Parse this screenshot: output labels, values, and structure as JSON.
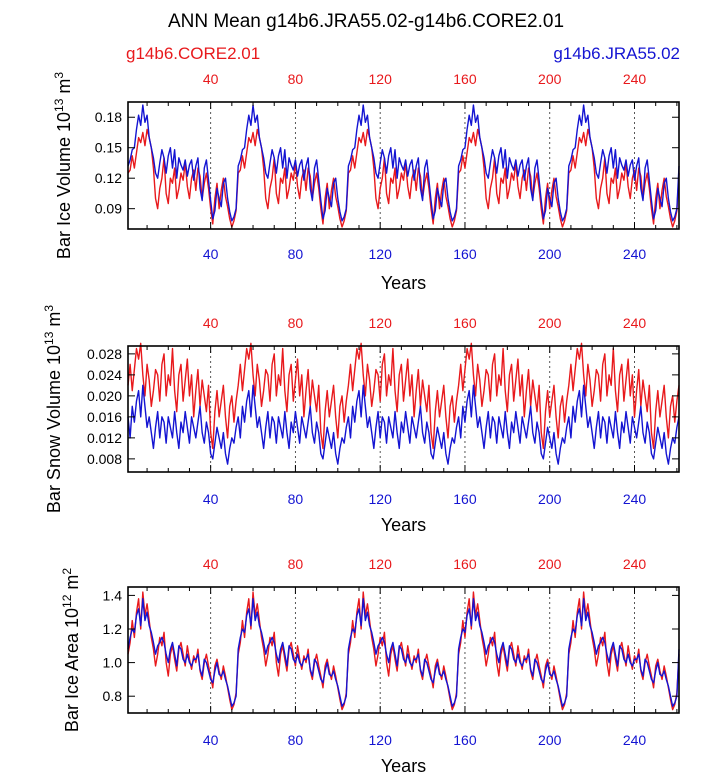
{
  "figure": {
    "title": "ANN Mean g14b6.JRA55.02-g14b6.CORE2.01",
    "legend_left": "g14b6.CORE2.01",
    "legend_right": "g14b6.JRA55.02",
    "colors": {
      "core": "#e8191c",
      "jra": "#1414d2",
      "axis": "#000000"
    }
  },
  "chart_data": [
    {
      "type": "line",
      "ylabel": "Bar Ice Volume 10^13 m^3",
      "ylabel_base": "Bar Ice Volume 10",
      "ylabel_exp": "13",
      "ylabel_unit": " m",
      "ylabel_unit_exp": "3",
      "xlabel": "Years",
      "xlim": [
        1,
        261
      ],
      "ylim": [
        0.07,
        0.195
      ],
      "yticks": [
        0.09,
        0.12,
        0.15,
        0.18
      ],
      "ytick_labels": [
        "0.09",
        "0.12",
        "0.15",
        "0.18"
      ],
      "xticks": [
        40,
        80,
        120,
        160,
        200,
        240
      ],
      "xtick_labels_top": [
        "40",
        "80",
        "120",
        "160",
        "200",
        "240"
      ],
      "xtick_labels_bottom": [
        "40",
        "80",
        "120",
        "160",
        "200",
        "240"
      ],
      "cycle_length": 52,
      "series": [
        {
          "name": "g14b6.CORE2.01",
          "color": "#e8191c",
          "values": [
            0.125,
            0.128,
            0.142,
            0.13,
            0.145,
            0.16,
            0.155,
            0.165,
            0.152,
            0.168,
            0.16,
            0.15,
            0.13,
            0.1,
            0.09,
            0.11,
            0.12,
            0.14,
            0.105,
            0.095,
            0.12,
            0.115,
            0.13,
            0.1,
            0.11,
            0.125,
            0.118,
            0.135,
            0.112,
            0.1,
            0.12,
            0.128,
            0.108,
            0.13,
            0.122,
            0.1,
            0.115,
            0.125,
            0.11,
            0.09,
            0.075,
            0.1,
            0.115,
            0.09,
            0.108,
            0.12,
            0.102,
            0.092,
            0.08,
            0.072,
            0.078,
            0.088
          ]
        },
        {
          "name": "g14b6.JRA55.02",
          "color": "#1414d2",
          "values": [
            0.132,
            0.138,
            0.148,
            0.15,
            0.168,
            0.182,
            0.172,
            0.192,
            0.175,
            0.182,
            0.16,
            0.15,
            0.14,
            0.125,
            0.12,
            0.135,
            0.148,
            0.14,
            0.125,
            0.142,
            0.15,
            0.13,
            0.148,
            0.12,
            0.14,
            0.133,
            0.128,
            0.138,
            0.122,
            0.133,
            0.138,
            0.118,
            0.132,
            0.14,
            0.11,
            0.098,
            0.13,
            0.138,
            0.118,
            0.098,
            0.08,
            0.088,
            0.11,
            0.1,
            0.092,
            0.115,
            0.12,
            0.1,
            0.087,
            0.078,
            0.082,
            0.09
          ]
        }
      ]
    },
    {
      "type": "line",
      "ylabel": "Bar Snow Volume 10^13 m^3",
      "ylabel_base": "Bar Snow Volume 10",
      "ylabel_exp": "13",
      "ylabel_unit": " m",
      "ylabel_unit_exp": "3",
      "xlabel": "Years",
      "xlim": [
        1,
        261
      ],
      "ylim": [
        0.0055,
        0.0295
      ],
      "yticks": [
        0.008,
        0.012,
        0.016,
        0.02,
        0.024,
        0.028
      ],
      "ytick_labels": [
        "0.008",
        "0.012",
        "0.016",
        "0.020",
        "0.024",
        "0.028"
      ],
      "xticks": [
        40,
        80,
        120,
        160,
        200,
        240
      ],
      "xtick_labels_top": [
        "40",
        "80",
        "120",
        "160",
        "200",
        "240"
      ],
      "xtick_labels_bottom": [
        "40",
        "80",
        "120",
        "160",
        "200",
        "240"
      ],
      "cycle_length": 52,
      "series": [
        {
          "name": "g14b6.CORE2.01",
          "color": "#e8191c",
          "values": [
            0.022,
            0.026,
            0.021,
            0.025,
            0.029,
            0.027,
            0.03,
            0.024,
            0.02,
            0.026,
            0.023,
            0.018,
            0.021,
            0.025,
            0.024,
            0.019,
            0.026,
            0.028,
            0.02,
            0.024,
            0.022,
            0.029,
            0.021,
            0.017,
            0.024,
            0.026,
            0.019,
            0.023,
            0.027,
            0.02,
            0.024,
            0.016,
            0.021,
            0.025,
            0.018,
            0.023,
            0.02,
            0.017,
            0.022,
            0.013,
            0.01,
            0.017,
            0.021,
            0.016,
            0.019,
            0.022,
            0.016,
            0.012,
            0.018,
            0.02,
            0.015,
            0.019
          ]
        },
        {
          "name": "g14b6.JRA55.02",
          "color": "#1414d2",
          "values": [
            0.016,
            0.012,
            0.018,
            0.015,
            0.019,
            0.021,
            0.016,
            0.022,
            0.018,
            0.014,
            0.016,
            0.013,
            0.01,
            0.014,
            0.017,
            0.012,
            0.016,
            0.015,
            0.011,
            0.016,
            0.014,
            0.012,
            0.017,
            0.013,
            0.01,
            0.015,
            0.013,
            0.017,
            0.014,
            0.011,
            0.016,
            0.014,
            0.012,
            0.015,
            0.018,
            0.013,
            0.011,
            0.015,
            0.013,
            0.009,
            0.008,
            0.011,
            0.014,
            0.012,
            0.01,
            0.013,
            0.009,
            0.007,
            0.01,
            0.012,
            0.011,
            0.014
          ]
        }
      ]
    },
    {
      "type": "line",
      "ylabel": "Bar Ice Area 10^12 m^2",
      "ylabel_base": "Bar Ice Area 10",
      "ylabel_exp": "12",
      "ylabel_unit": " m",
      "ylabel_unit_exp": "2",
      "xlabel": "Years",
      "xlim": [
        1,
        261
      ],
      "ylim": [
        0.7,
        1.45
      ],
      "yticks": [
        0.8,
        1.0,
        1.2,
        1.4
      ],
      "ytick_labels": [
        "0.8",
        "1.0",
        "1.2",
        "1.4"
      ],
      "xticks": [
        40,
        80,
        120,
        160,
        200,
        240
      ],
      "xtick_labels_top": [
        "40",
        "80",
        "120",
        "160",
        "200",
        "240"
      ],
      "xtick_labels_bottom": [
        "40",
        "80",
        "120",
        "160",
        "200",
        "240"
      ],
      "cycle_length": 52,
      "series": [
        {
          "name": "g14b6.CORE2.01",
          "color": "#e8191c",
          "values": [
            1.05,
            1.12,
            1.25,
            1.15,
            1.3,
            1.38,
            1.2,
            1.42,
            1.28,
            1.35,
            1.25,
            1.15,
            1.08,
            0.98,
            1.05,
            1.15,
            1.1,
            1.18,
            1.0,
            0.92,
            1.05,
            1.1,
            1.02,
            0.95,
            1.08,
            1.12,
            1.05,
            0.98,
            1.1,
            1.02,
            0.96,
            1.04,
            1.0,
            1.08,
            0.95,
            0.9,
            1.0,
            1.05,
            0.98,
            0.92,
            0.85,
            0.98,
            1.02,
            0.95,
            0.9,
            0.98,
            0.92,
            0.85,
            0.78,
            0.72,
            0.75,
            0.82
          ]
        },
        {
          "name": "g14b6.JRA55.02",
          "color": "#1414d2",
          "values": [
            1.08,
            1.15,
            1.2,
            1.18,
            1.28,
            1.32,
            1.22,
            1.38,
            1.25,
            1.3,
            1.22,
            1.18,
            1.12,
            1.05,
            1.1,
            1.12,
            1.15,
            1.12,
            1.05,
            1.0,
            1.08,
            1.12,
            1.05,
            0.98,
            1.1,
            1.08,
            1.02,
            1.0,
            1.05,
            1.0,
            0.98,
            1.02,
            1.02,
            1.05,
            0.96,
            0.92,
            1.02,
            1.0,
            0.95,
            0.9,
            0.88,
            0.95,
            1.0,
            0.93,
            0.92,
            0.95,
            0.9,
            0.86,
            0.8,
            0.74,
            0.76,
            0.8
          ]
        }
      ]
    }
  ]
}
